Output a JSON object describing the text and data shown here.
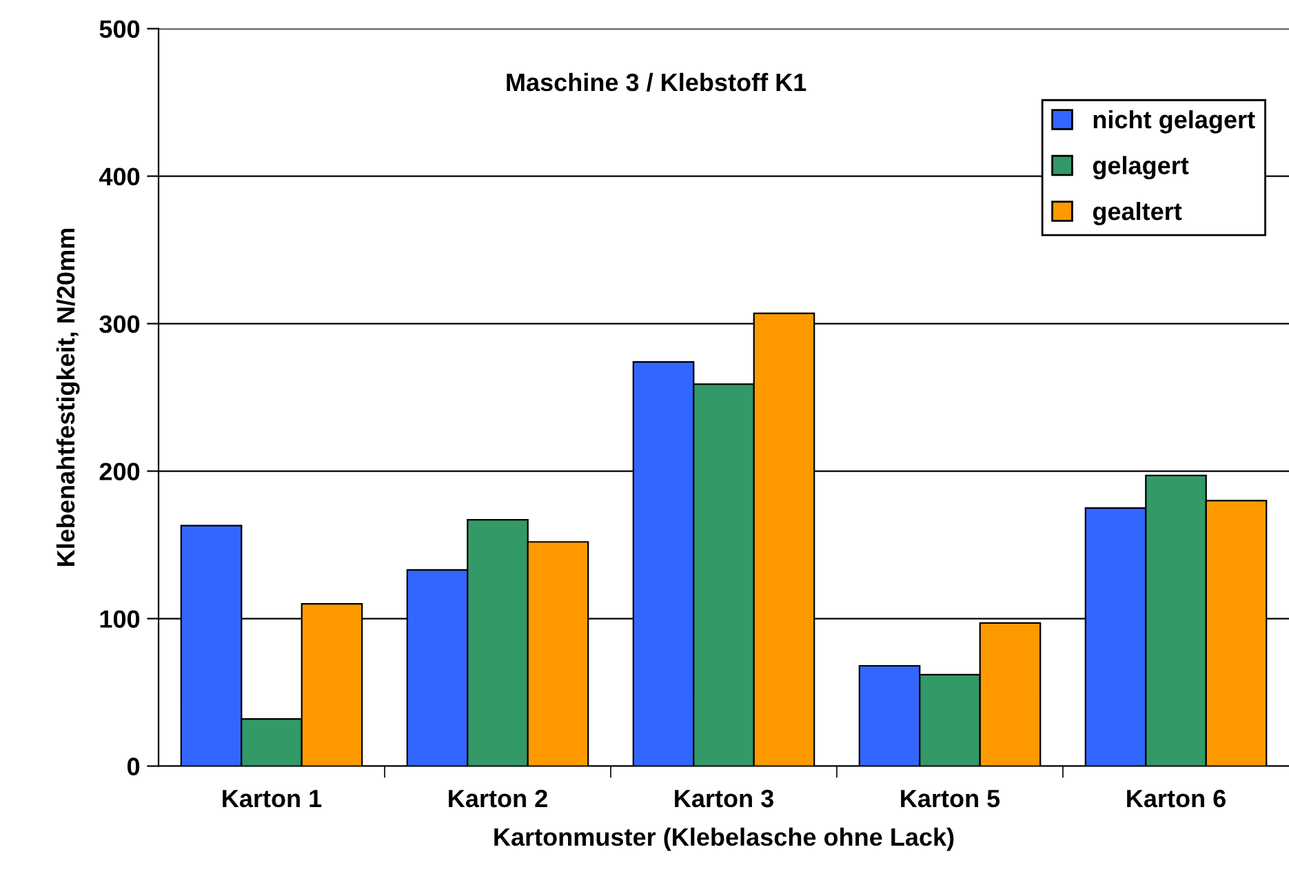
{
  "chart_data": {
    "type": "bar",
    "title": "Maschine 3 / Klebstoff K1",
    "xlabel": "Kartonmuster (Klebelasche ohne Lack)",
    "ylabel": "Klebenahtfestigkeit, N/20mm",
    "categories": [
      "Karton 1",
      "Karton 2",
      "Karton 3",
      "Karton 5",
      "Karton 6"
    ],
    "series": [
      {
        "name": "nicht gelagert",
        "color": "#3366ff",
        "values": [
          163,
          133,
          274,
          68,
          175
        ]
      },
      {
        "name": "gelagert",
        "color": "#339966",
        "values": [
          32,
          167,
          259,
          62,
          197
        ]
      },
      {
        "name": "gealtert",
        "color": "#ff9900",
        "values": [
          110,
          152,
          307,
          97,
          180
        ]
      }
    ],
    "ylim": [
      0,
      500
    ],
    "yticks": [
      0,
      100,
      200,
      300,
      400,
      500
    ],
    "grid": "y",
    "legend": "top right"
  }
}
